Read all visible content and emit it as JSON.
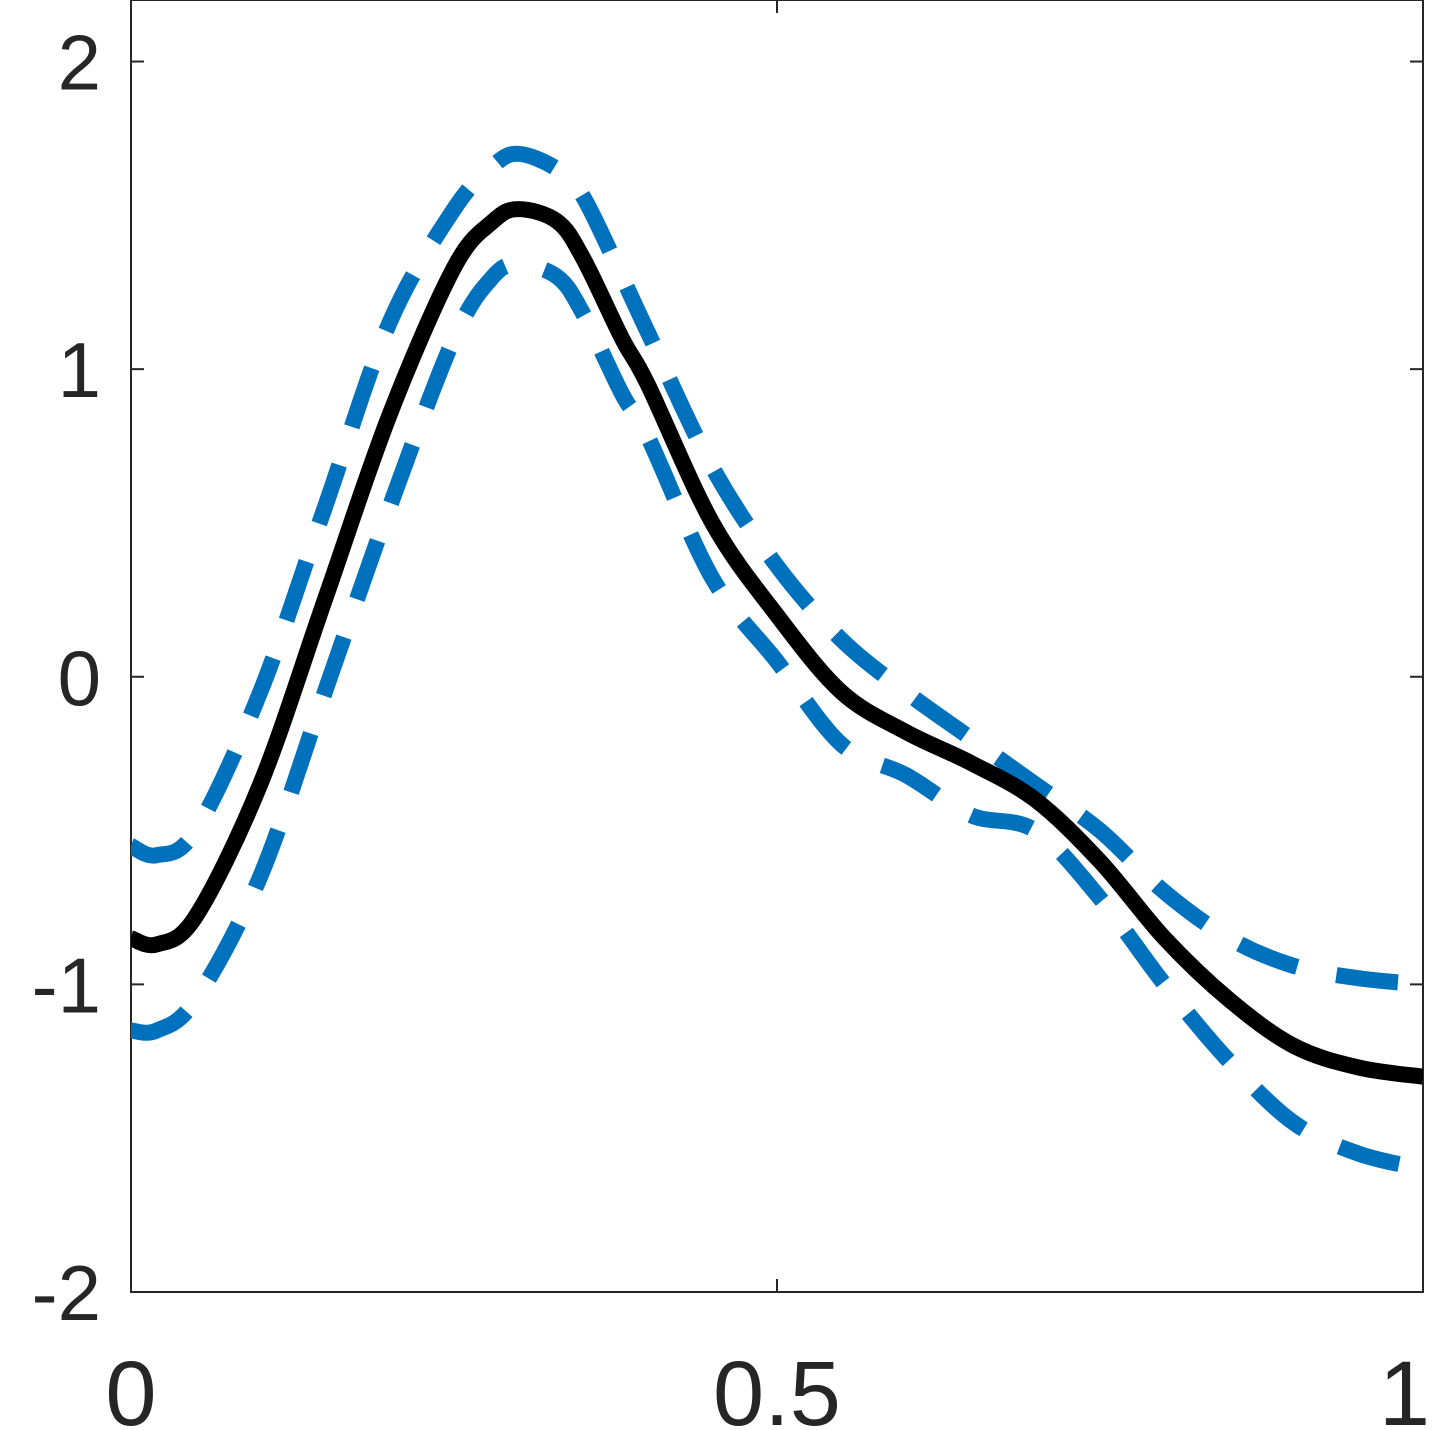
{
  "chart_data": {
    "type": "line",
    "title": "",
    "xlabel": "",
    "ylabel": "",
    "xlim": [
      0,
      1
    ],
    "ylim": [
      -2,
      2.2
    ],
    "x_ticks": [
      0,
      0.5,
      1
    ],
    "x_tick_labels": [
      "0",
      "0.5",
      "1"
    ],
    "y_ticks": [
      -2,
      -1,
      0,
      1,
      2
    ],
    "y_tick_labels": [
      "-2",
      "-1",
      "0",
      "1",
      "2"
    ],
    "grid": false,
    "legend": "none",
    "series": [
      {
        "style": "solid",
        "color": "#000000",
        "x": [
          0,
          0.02,
          0.05,
          0.1,
          0.15,
          0.2,
          0.25,
          0.28,
          0.3,
          0.33,
          0.35,
          0.38,
          0.4,
          0.45,
          0.5,
          0.55,
          0.6,
          0.65,
          0.7,
          0.75,
          0.8,
          0.85,
          0.9,
          0.95,
          1.0
        ],
        "y": [
          -0.85,
          -0.87,
          -0.78,
          -0.35,
          0.25,
          0.85,
          1.33,
          1.48,
          1.52,
          1.48,
          1.36,
          1.1,
          0.95,
          0.5,
          0.2,
          -0.05,
          -0.18,
          -0.28,
          -0.4,
          -0.6,
          -0.85,
          -1.05,
          -1.2,
          -1.27,
          -1.3
        ]
      },
      {
        "style": "dashed",
        "color": "#0072BD",
        "x": [
          0,
          0.02,
          0.05,
          0.1,
          0.15,
          0.2,
          0.25,
          0.28,
          0.3,
          0.33,
          0.35,
          0.38,
          0.4,
          0.45,
          0.5,
          0.55,
          0.6,
          0.65,
          0.7,
          0.75,
          0.8,
          0.85,
          0.9,
          0.95,
          1.0
        ],
        "y": [
          -0.55,
          -0.58,
          -0.5,
          -0.05,
          0.55,
          1.15,
          1.52,
          1.66,
          1.7,
          1.65,
          1.56,
          1.3,
          1.12,
          0.68,
          0.36,
          0.12,
          -0.05,
          -0.2,
          -0.35,
          -0.5,
          -0.7,
          -0.85,
          -0.94,
          -0.98,
          -1.0
        ]
      },
      {
        "style": "dashed",
        "color": "#0072BD",
        "x": [
          0,
          0.02,
          0.05,
          0.1,
          0.15,
          0.2,
          0.25,
          0.28,
          0.3,
          0.33,
          0.35,
          0.38,
          0.4,
          0.45,
          0.5,
          0.55,
          0.6,
          0.65,
          0.7,
          0.75,
          0.8,
          0.85,
          0.9,
          0.95,
          1.0
        ],
        "y": [
          -1.15,
          -1.15,
          -1.05,
          -0.65,
          -0.05,
          0.55,
          1.1,
          1.3,
          1.34,
          1.3,
          1.18,
          0.92,
          0.78,
          0.32,
          0.05,
          -0.22,
          -0.32,
          -0.45,
          -0.5,
          -0.72,
          -1.0,
          -1.25,
          -1.45,
          -1.55,
          -1.6
        ]
      }
    ]
  }
}
